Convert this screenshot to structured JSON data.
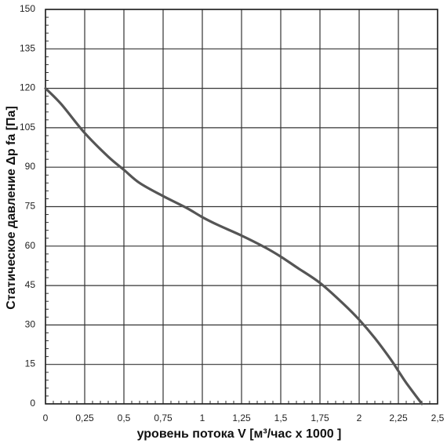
{
  "chart_data": {
    "type": "line",
    "xlabel": "уровень потока  V [м³/час х 1000 ]",
    "ylabel": "Статическое давление  Δp fa [Па]",
    "xlim": [
      0,
      2.5
    ],
    "ylim": [
      0,
      150
    ],
    "x_ticks": [
      0,
      0.25,
      0.5,
      0.75,
      1,
      1.25,
      1.5,
      1.75,
      2,
      2.25,
      2.5
    ],
    "x_tick_labels": [
      "0",
      "0,25",
      "0,5",
      "0,75",
      "1",
      "1,25",
      "1,5",
      "1,75",
      "2",
      "2,25",
      "2,5"
    ],
    "y_ticks": [
      0,
      15,
      30,
      45,
      60,
      75,
      90,
      105,
      120,
      135,
      150
    ],
    "y_tick_labels": [
      "0",
      "15",
      "30",
      "45",
      "60",
      "75",
      "90",
      "105",
      "120",
      "135",
      "150"
    ],
    "grid": true,
    "minor_ticks_per_major": 5,
    "series": [
      {
        "color": "#555555",
        "x": [
          0,
          0.1,
          0.25,
          0.4,
          0.5,
          0.6,
          0.75,
          0.9,
          1.0,
          1.1,
          1.25,
          1.4,
          1.5,
          1.6,
          1.75,
          1.9,
          2.0,
          2.1,
          2.2,
          2.25,
          2.3,
          2.4
        ],
        "y": [
          120,
          114,
          103,
          94,
          89,
          84,
          79,
          74.5,
          71,
          68,
          64,
          59.5,
          56,
          52,
          46,
          38,
          32,
          25,
          17,
          12.5,
          8,
          0
        ]
      }
    ]
  }
}
